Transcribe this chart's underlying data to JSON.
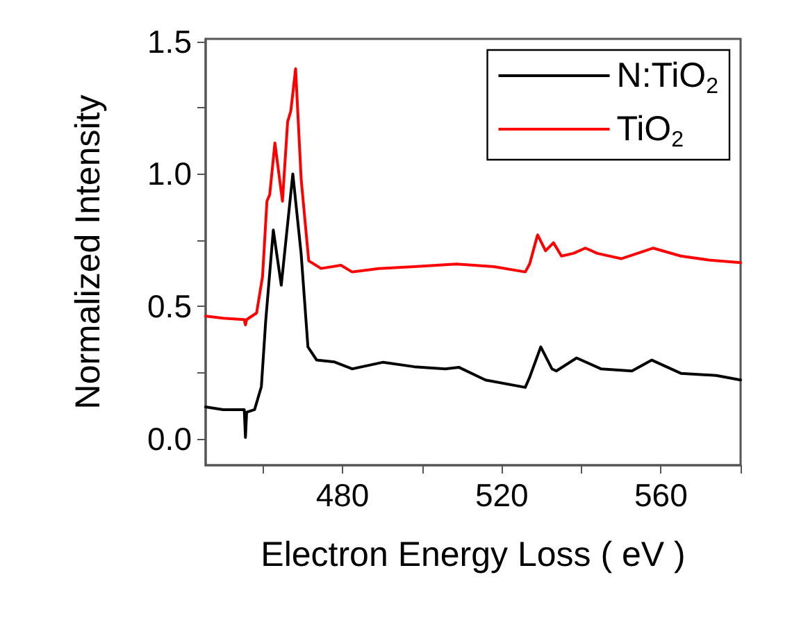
{
  "chart_data": {
    "type": "line",
    "xlabel": "Electron Energy Loss ( eV )",
    "ylabel": "Normalized Intensity",
    "xlim": [
      445.6,
      580
    ],
    "ylim": [
      -0.1,
      1.51
    ],
    "xticks": [
      {
        "value": 460,
        "label": null
      },
      480,
      {
        "value": 500,
        "label": null
      },
      520,
      {
        "value": 540,
        "label": null
      },
      560,
      {
        "value": 580,
        "label": null
      }
    ],
    "yticks": [
      {
        "value": 0,
        "label": "0.0"
      },
      {
        "value": 0.25,
        "label": null
      },
      0.5,
      {
        "value": 0.75,
        "label": null
      },
      {
        "value": 1,
        "label": "1.0"
      },
      {
        "value": 1.25,
        "label": null
      },
      1.5
    ],
    "grid": false,
    "legend": "top right",
    "marker": "none",
    "line_style": "solid",
    "series": [
      {
        "name": "N:TiO$_{2}$",
        "color": "#000000",
        "x": [
          445.6,
          450,
          455.3,
          455.6,
          455.9,
          457.9,
          459.6,
          460.7,
          462.6,
          464.6,
          467.5,
          469.6,
          471.3,
          473.5,
          478,
          482.4,
          490.2,
          498,
          505.8,
          509.2,
          515.9,
          525.9,
          527,
          529.8,
          532.6,
          533.7,
          538.8,
          544.9,
          552.7,
          557.7,
          565,
          573.9,
          580
        ],
        "values": [
          0.12,
          0.11,
          0.11,
          0.005,
          0.1,
          0.11,
          0.197,
          0.447,
          0.788,
          0.58,
          1.0,
          0.697,
          0.347,
          0.297,
          0.29,
          0.264,
          0.289,
          0.272,
          0.264,
          0.27,
          0.222,
          0.194,
          0.232,
          0.347,
          0.264,
          0.256,
          0.305,
          0.264,
          0.256,
          0.297,
          0.247,
          0.239,
          0.222
        ]
      },
      {
        "name": "TiO$_{2}$",
        "color": "#ff0000",
        "x": [
          445.6,
          450,
          455.3,
          455.6,
          455.9,
          458.4,
          459.9,
          461,
          461.7,
          463,
          464.9,
          466.2,
          467,
          468.2,
          469.6,
          471.5,
          474.6,
          479.6,
          482.4,
          489.1,
          498,
          508.6,
          518,
          525.9,
          527,
          529,
          531,
          533,
          535,
          538,
          541,
          544,
          550,
          558,
          565,
          572,
          580
        ],
        "values": [
          0.463,
          0.455,
          0.45,
          0.43,
          0.45,
          0.475,
          0.613,
          0.897,
          0.922,
          1.117,
          0.897,
          1.197,
          1.238,
          1.397,
          0.98,
          0.672,
          0.643,
          0.655,
          0.63,
          0.643,
          0.65,
          0.66,
          0.65,
          0.63,
          0.66,
          0.77,
          0.71,
          0.74,
          0.69,
          0.7,
          0.72,
          0.7,
          0.68,
          0.72,
          0.69,
          0.675,
          0.665
        ]
      }
    ]
  }
}
